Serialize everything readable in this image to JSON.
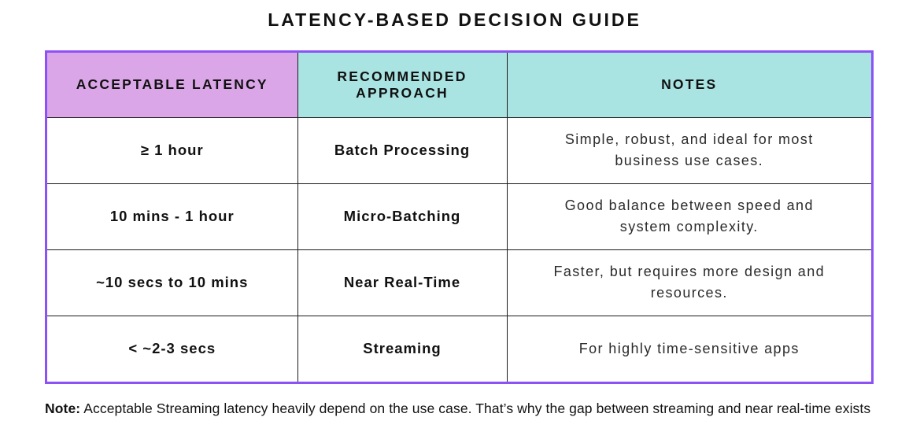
{
  "title": "LATENCY-BASED DECISION GUIDE",
  "colors": {
    "border-purple": "#8c52f5",
    "header-purple": "#dba6e8",
    "header-teal": "#a9e4e2",
    "line-black": "#1b1b1b"
  },
  "chart_data": {
    "type": "table",
    "title": "LATENCY-BASED DECISION GUIDE",
    "columns": [
      "ACCEPTABLE LATENCY",
      "RECOMMENDED APPROACH",
      "NOTES"
    ],
    "rows": [
      {
        "latency": "≥ 1 hour",
        "approach": "Batch Processing",
        "notes": "Simple, robust, and ideal for most business use cases."
      },
      {
        "latency": "10 mins - 1 hour",
        "approach": "Micro-Batching",
        "notes": "Good balance between speed and system complexity."
      },
      {
        "latency": "~10 secs to 10 mins",
        "approach": "Near Real-Time",
        "notes": "Faster, but requires more design and resources."
      },
      {
        "latency": "< ~2-3 secs",
        "approach": "Streaming",
        "notes": "For highly time-sensitive apps"
      }
    ]
  },
  "footnote": {
    "label": "Note:",
    "text": " Acceptable Streaming latency heavily depend on the use case. That’s why the gap between streaming and near real-time exists"
  }
}
